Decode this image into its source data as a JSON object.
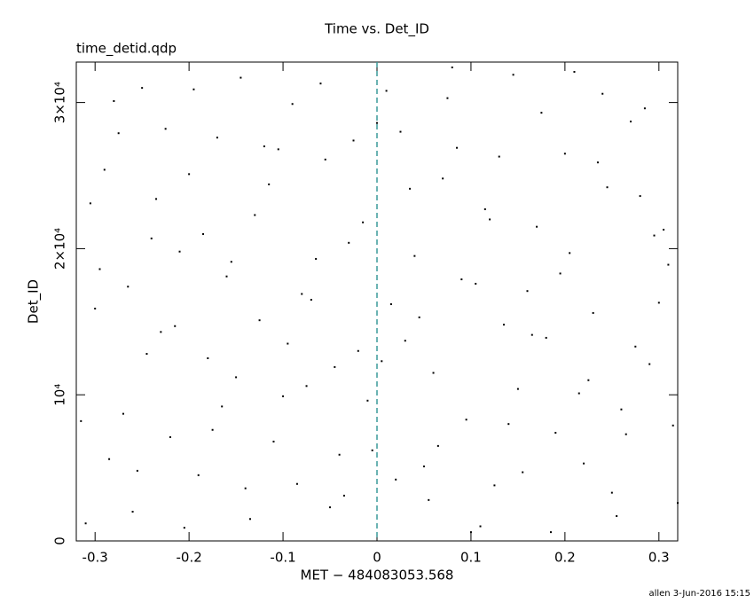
{
  "chart_data": {
    "type": "scatter",
    "title": "Time vs. Det_ID",
    "subtitle": "time_detid.qdp",
    "x_label": "MET − 484083053.568",
    "y_label": "Det_ID",
    "footer": "allen  3-Jun-2016 15:15",
    "color": "#000000",
    "reference_line": {
      "x": 0,
      "color": "#3a9a9a"
    },
    "xlim": [
      -0.32,
      0.32
    ],
    "ylim": [
      0,
      32768
    ],
    "xticks": [
      -0.3,
      -0.2,
      -0.1,
      0,
      0.1,
      0.2,
      0.3
    ],
    "yticks": [
      0,
      {
        "value": 10000,
        "label": "10⁴"
      },
      {
        "value": 20000,
        "label": "2×10⁴"
      },
      {
        "value": 30000,
        "label": "3×10⁴"
      }
    ],
    "x": [
      -0.31,
      -0.29,
      -0.27,
      -0.25,
      -0.23,
      -0.21,
      -0.19,
      -0.17,
      -0.15,
      -0.13,
      -0.11,
      -0.09,
      -0.07,
      -0.05,
      -0.03,
      -0.01,
      0.01,
      0.03,
      0.05,
      0.07,
      0.09,
      0.11,
      0.13,
      0.15,
      0.17,
      0.19,
      0.21,
      0.23,
      0.25,
      0.27,
      0.29,
      0.31,
      -0.305,
      -0.285,
      -0.265,
      -0.245,
      -0.225,
      -0.205,
      -0.185,
      -0.165,
      -0.145,
      -0.125,
      -0.105,
      -0.085,
      -0.065,
      -0.045,
      -0.025,
      -0.005,
      0.015,
      0.035,
      0.055,
      0.075,
      0.095,
      0.115,
      0.135,
      0.155,
      0.175,
      0.195,
      0.215,
      0.235,
      0.255,
      0.275,
      0.295,
      0.315,
      -0.3,
      -0.28,
      -0.26,
      -0.24,
      -0.22,
      -0.2,
      -0.18,
      -0.16,
      -0.14,
      -0.12,
      -0.1,
      -0.08,
      -0.06,
      -0.04,
      -0.02,
      0,
      0.02,
      0.04,
      0.06,
      0.08,
      0.1,
      0.12,
      0.14,
      0.16,
      0.18,
      0.2,
      0.22,
      0.24,
      0.26,
      0.28,
      0.3,
      0.32,
      -0.315,
      -0.295,
      -0.275,
      -0.255,
      -0.235,
      -0.215,
      -0.195,
      -0.175,
      -0.155,
      -0.135,
      -0.115,
      -0.095,
      -0.075,
      -0.055,
      -0.035,
      -0.015,
      0.005,
      0.025,
      0.045,
      0.065,
      0.085,
      0.105,
      0.125,
      0.145,
      0.165,
      0.185,
      0.205,
      0.225,
      0.245,
      0.265,
      0.285,
      0.305
    ],
    "values": [
      1200,
      25400,
      8700,
      31000,
      14300,
      19800,
      4500,
      27600,
      11200,
      22300,
      6800,
      29900,
      16500,
      2300,
      20400,
      9600,
      30800,
      13700,
      5100,
      24800,
      17900,
      1000,
      26300,
      10400,
      21500,
      7400,
      32100,
      15600,
      3300,
      28700,
      12100,
      18900,
      23100,
      5600,
      17400,
      12800,
      28200,
      900,
      21000,
      9200,
      31700,
      15100,
      26800,
      3900,
      19300,
      11900,
      27400,
      6200,
      16200,
      24100,
      2800,
      30300,
      8300,
      22700,
      14800,
      4700,
      29300,
      18300,
      10100,
      25900,
      1700,
      13300,
      20900,
      7900,
      15900,
      30100,
      2000,
      20700,
      7100,
      25100,
      12500,
      18100,
      3600,
      27000,
      9900,
      16900,
      31300,
      5900,
      13000,
      28600,
      4200,
      19500,
      11500,
      32400,
      600,
      22000,
      8000,
      17100,
      13900,
      26500,
      5300,
      30600,
      9000,
      23600,
      16300,
      2600,
      8200,
      18600,
      27900,
      4800,
      23400,
      14700,
      30900,
      7600,
      19100,
      1500,
      24400,
      13500,
      10600,
      26100,
      3100,
      21800,
      12300,
      28000,
      15300,
      6500,
      26900,
      17600,
      3800,
      31900,
      14100,
      600,
      19700,
      11000,
      24200,
      7300,
      29600,
      21300
    ]
  }
}
